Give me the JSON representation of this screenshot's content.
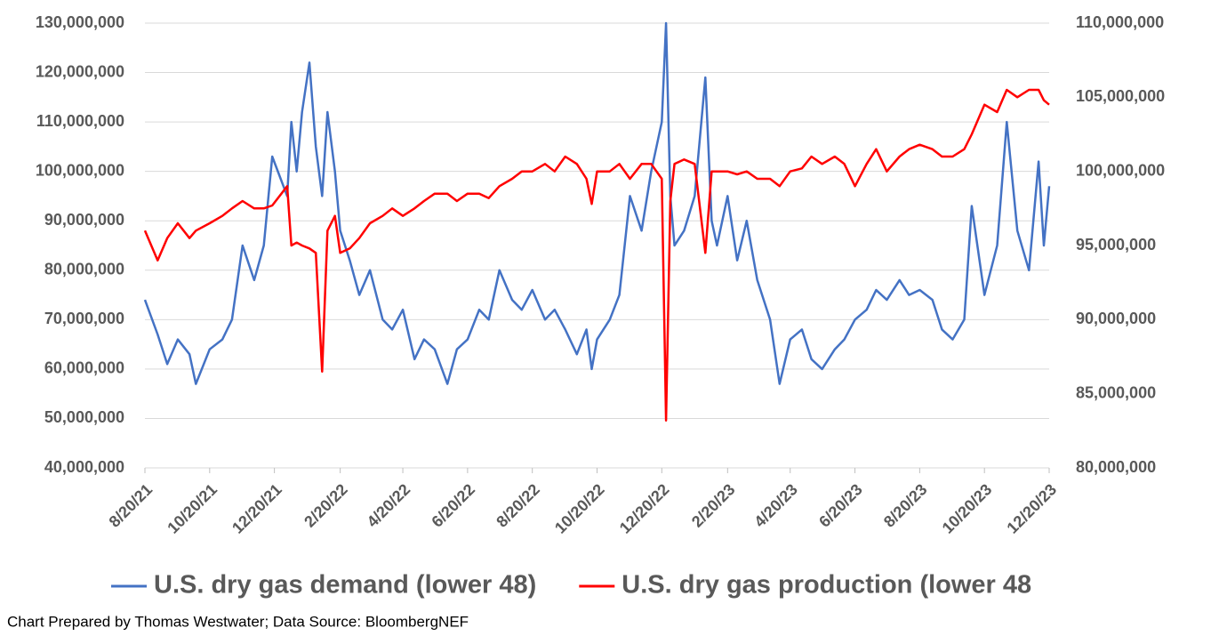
{
  "chart_data": {
    "type": "line",
    "footnote": "Chart Prepared by Thomas Westwater; Data Source: BloombergNEF",
    "grid": true,
    "legend": "bottom",
    "x": [
      "2021-08-20",
      "2021-09-01",
      "2021-09-10",
      "2021-09-20",
      "2021-10-01",
      "2021-10-07",
      "2021-10-20",
      "2021-11-01",
      "2021-11-10",
      "2021-11-20",
      "2021-12-01",
      "2021-12-10",
      "2021-12-18",
      "2022-01-01",
      "2022-01-05",
      "2022-01-10",
      "2022-01-15",
      "2022-01-22",
      "2022-01-28",
      "2022-02-03",
      "2022-02-08",
      "2022-02-15",
      "2022-02-20",
      "2022-03-01",
      "2022-03-10",
      "2022-03-20",
      "2022-04-01",
      "2022-04-10",
      "2022-04-20",
      "2022-05-01",
      "2022-05-10",
      "2022-05-20",
      "2022-06-01",
      "2022-06-10",
      "2022-06-20",
      "2022-07-01",
      "2022-07-10",
      "2022-07-20",
      "2022-08-01",
      "2022-08-10",
      "2022-08-20",
      "2022-09-01",
      "2022-09-10",
      "2022-09-20",
      "2022-10-01",
      "2022-10-10",
      "2022-10-15",
      "2022-10-20",
      "2022-11-01",
      "2022-11-10",
      "2022-11-20",
      "2022-12-01",
      "2022-12-10",
      "2022-12-20",
      "2022-12-24",
      "2022-12-28",
      "2023-01-01",
      "2023-01-10",
      "2023-01-20",
      "2023-01-30",
      "2023-02-05",
      "2023-02-10",
      "2023-02-20",
      "2023-03-01",
      "2023-03-10",
      "2023-03-20",
      "2023-04-01",
      "2023-04-10",
      "2023-04-20",
      "2023-05-01",
      "2023-05-10",
      "2023-05-20",
      "2023-06-01",
      "2023-06-10",
      "2023-06-20",
      "2023-07-01",
      "2023-07-10",
      "2023-07-20",
      "2023-08-01",
      "2023-08-10",
      "2023-08-20",
      "2023-09-01",
      "2023-09-10",
      "2023-09-20",
      "2023-10-01",
      "2023-10-08",
      "2023-10-20",
      "2023-11-01",
      "2023-11-10",
      "2023-11-20",
      "2023-12-01",
      "2023-12-10",
      "2023-12-15",
      "2023-12-20"
    ],
    "xlim": [
      "2021-08-20",
      "2023-12-20"
    ],
    "xticks": [
      {
        "value": "2021-08-20",
        "label": "8/20/21"
      },
      {
        "value": "2021-10-20",
        "label": "10/20/21"
      },
      {
        "value": "2021-12-20",
        "label": "12/20/21"
      },
      {
        "value": "2022-02-20",
        "label": "2/20/22"
      },
      {
        "value": "2022-04-20",
        "label": "4/20/22"
      },
      {
        "value": "2022-06-20",
        "label": "6/20/22"
      },
      {
        "value": "2022-08-20",
        "label": "8/20/22"
      },
      {
        "value": "2022-10-20",
        "label": "10/20/22"
      },
      {
        "value": "2022-12-20",
        "label": "12/20/22"
      },
      {
        "value": "2023-02-20",
        "label": "2/20/23"
      },
      {
        "value": "2023-04-20",
        "label": "4/20/23"
      },
      {
        "value": "2023-06-20",
        "label": "6/20/23"
      },
      {
        "value": "2023-08-20",
        "label": "8/20/23"
      },
      {
        "value": "2023-10-20",
        "label": "10/20/23"
      },
      {
        "value": "2023-12-20",
        "label": "12/20/23"
      }
    ],
    "ylim": [
      40000000,
      130000000
    ],
    "yticks": [
      {
        "value": 40000000,
        "label": "40,000,000"
      },
      {
        "value": 50000000,
        "label": "50,000,000"
      },
      {
        "value": 60000000,
        "label": "60,000,000"
      },
      {
        "value": 70000000,
        "label": "70,000,000"
      },
      {
        "value": 80000000,
        "label": "80,000,000"
      },
      {
        "value": 90000000,
        "label": "90,000,000"
      },
      {
        "value": 100000000,
        "label": "100,000,000"
      },
      {
        "value": 110000000,
        "label": "110,000,000"
      },
      {
        "value": 120000000,
        "label": "120,000,000"
      },
      {
        "value": 130000000,
        "label": "130,000,000"
      }
    ],
    "y2lim": [
      80000000,
      110000000
    ],
    "y2ticks": [
      {
        "value": 80000000,
        "label": "80,000,000"
      },
      {
        "value": 85000000,
        "label": "85,000,000"
      },
      {
        "value": 90000000,
        "label": "90,000,000"
      },
      {
        "value": 95000000,
        "label": "95,000,000"
      },
      {
        "value": 100000000,
        "label": "100,000,000"
      },
      {
        "value": 105000000,
        "label": "105,000,000"
      },
      {
        "value": 110000000,
        "label": "110,000,000"
      }
    ],
    "series": [
      {
        "name": "U.S. dry gas demand (lower 48)",
        "color": "#4472c4",
        "values": [
          74000000,
          67000000,
          61000000,
          66000000,
          63000000,
          57000000,
          64000000,
          66000000,
          70000000,
          85000000,
          78000000,
          85000000,
          103000000,
          95000000,
          110000000,
          100000000,
          112000000,
          122000000,
          105000000,
          95000000,
          112000000,
          100000000,
          88000000,
          82000000,
          75000000,
          80000000,
          70000000,
          68000000,
          72000000,
          62000000,
          66000000,
          64000000,
          57000000,
          64000000,
          66000000,
          72000000,
          70000000,
          80000000,
          74000000,
          72000000,
          76000000,
          70000000,
          72000000,
          68000000,
          63000000,
          68000000,
          60000000,
          66000000,
          70000000,
          75000000,
          95000000,
          88000000,
          100000000,
          110000000,
          130000000,
          95000000,
          85000000,
          88000000,
          95000000,
          119000000,
          90000000,
          85000000,
          95000000,
          82000000,
          90000000,
          78000000,
          70000000,
          57000000,
          66000000,
          68000000,
          62000000,
          60000000,
          64000000,
          66000000,
          70000000,
          72000000,
          76000000,
          74000000,
          78000000,
          75000000,
          76000000,
          74000000,
          68000000,
          66000000,
          70000000,
          93000000,
          75000000,
          85000000,
          110000000,
          88000000,
          80000000,
          102000000,
          85000000,
          97000000
        ]
      },
      {
        "name": "U.S. dry gas production (lower 48",
        "color": "#ff0000",
        "axis": "y2",
        "values": [
          96000000,
          94000000,
          95500000,
          96500000,
          95500000,
          96000000,
          96500000,
          97000000,
          97500000,
          98000000,
          97500000,
          97500000,
          97700000,
          99000000,
          95000000,
          95200000,
          95000000,
          94800000,
          94500000,
          86500000,
          96000000,
          97000000,
          94500000,
          94800000,
          95500000,
          96500000,
          97000000,
          97500000,
          97000000,
          97500000,
          98000000,
          98500000,
          98500000,
          98000000,
          98500000,
          98500000,
          98200000,
          99000000,
          99500000,
          100000000,
          100000000,
          100500000,
          100000000,
          101000000,
          100500000,
          99500000,
          97800000,
          100000000,
          100000000,
          100500000,
          99500000,
          100500000,
          100500000,
          99500000,
          83200000,
          98000000,
          100500000,
          100800000,
          100500000,
          94500000,
          100000000,
          100000000,
          100000000,
          99800000,
          100000000,
          99500000,
          99500000,
          99000000,
          100000000,
          100200000,
          101000000,
          100500000,
          101000000,
          100500000,
          99000000,
          100500000,
          101500000,
          100000000,
          101000000,
          101500000,
          101800000,
          101500000,
          101000000,
          101000000,
          101500000,
          102500000,
          104500000,
          104000000,
          105500000,
          105000000,
          105500000,
          105500000,
          104800000,
          104500000
        ]
      }
    ]
  }
}
